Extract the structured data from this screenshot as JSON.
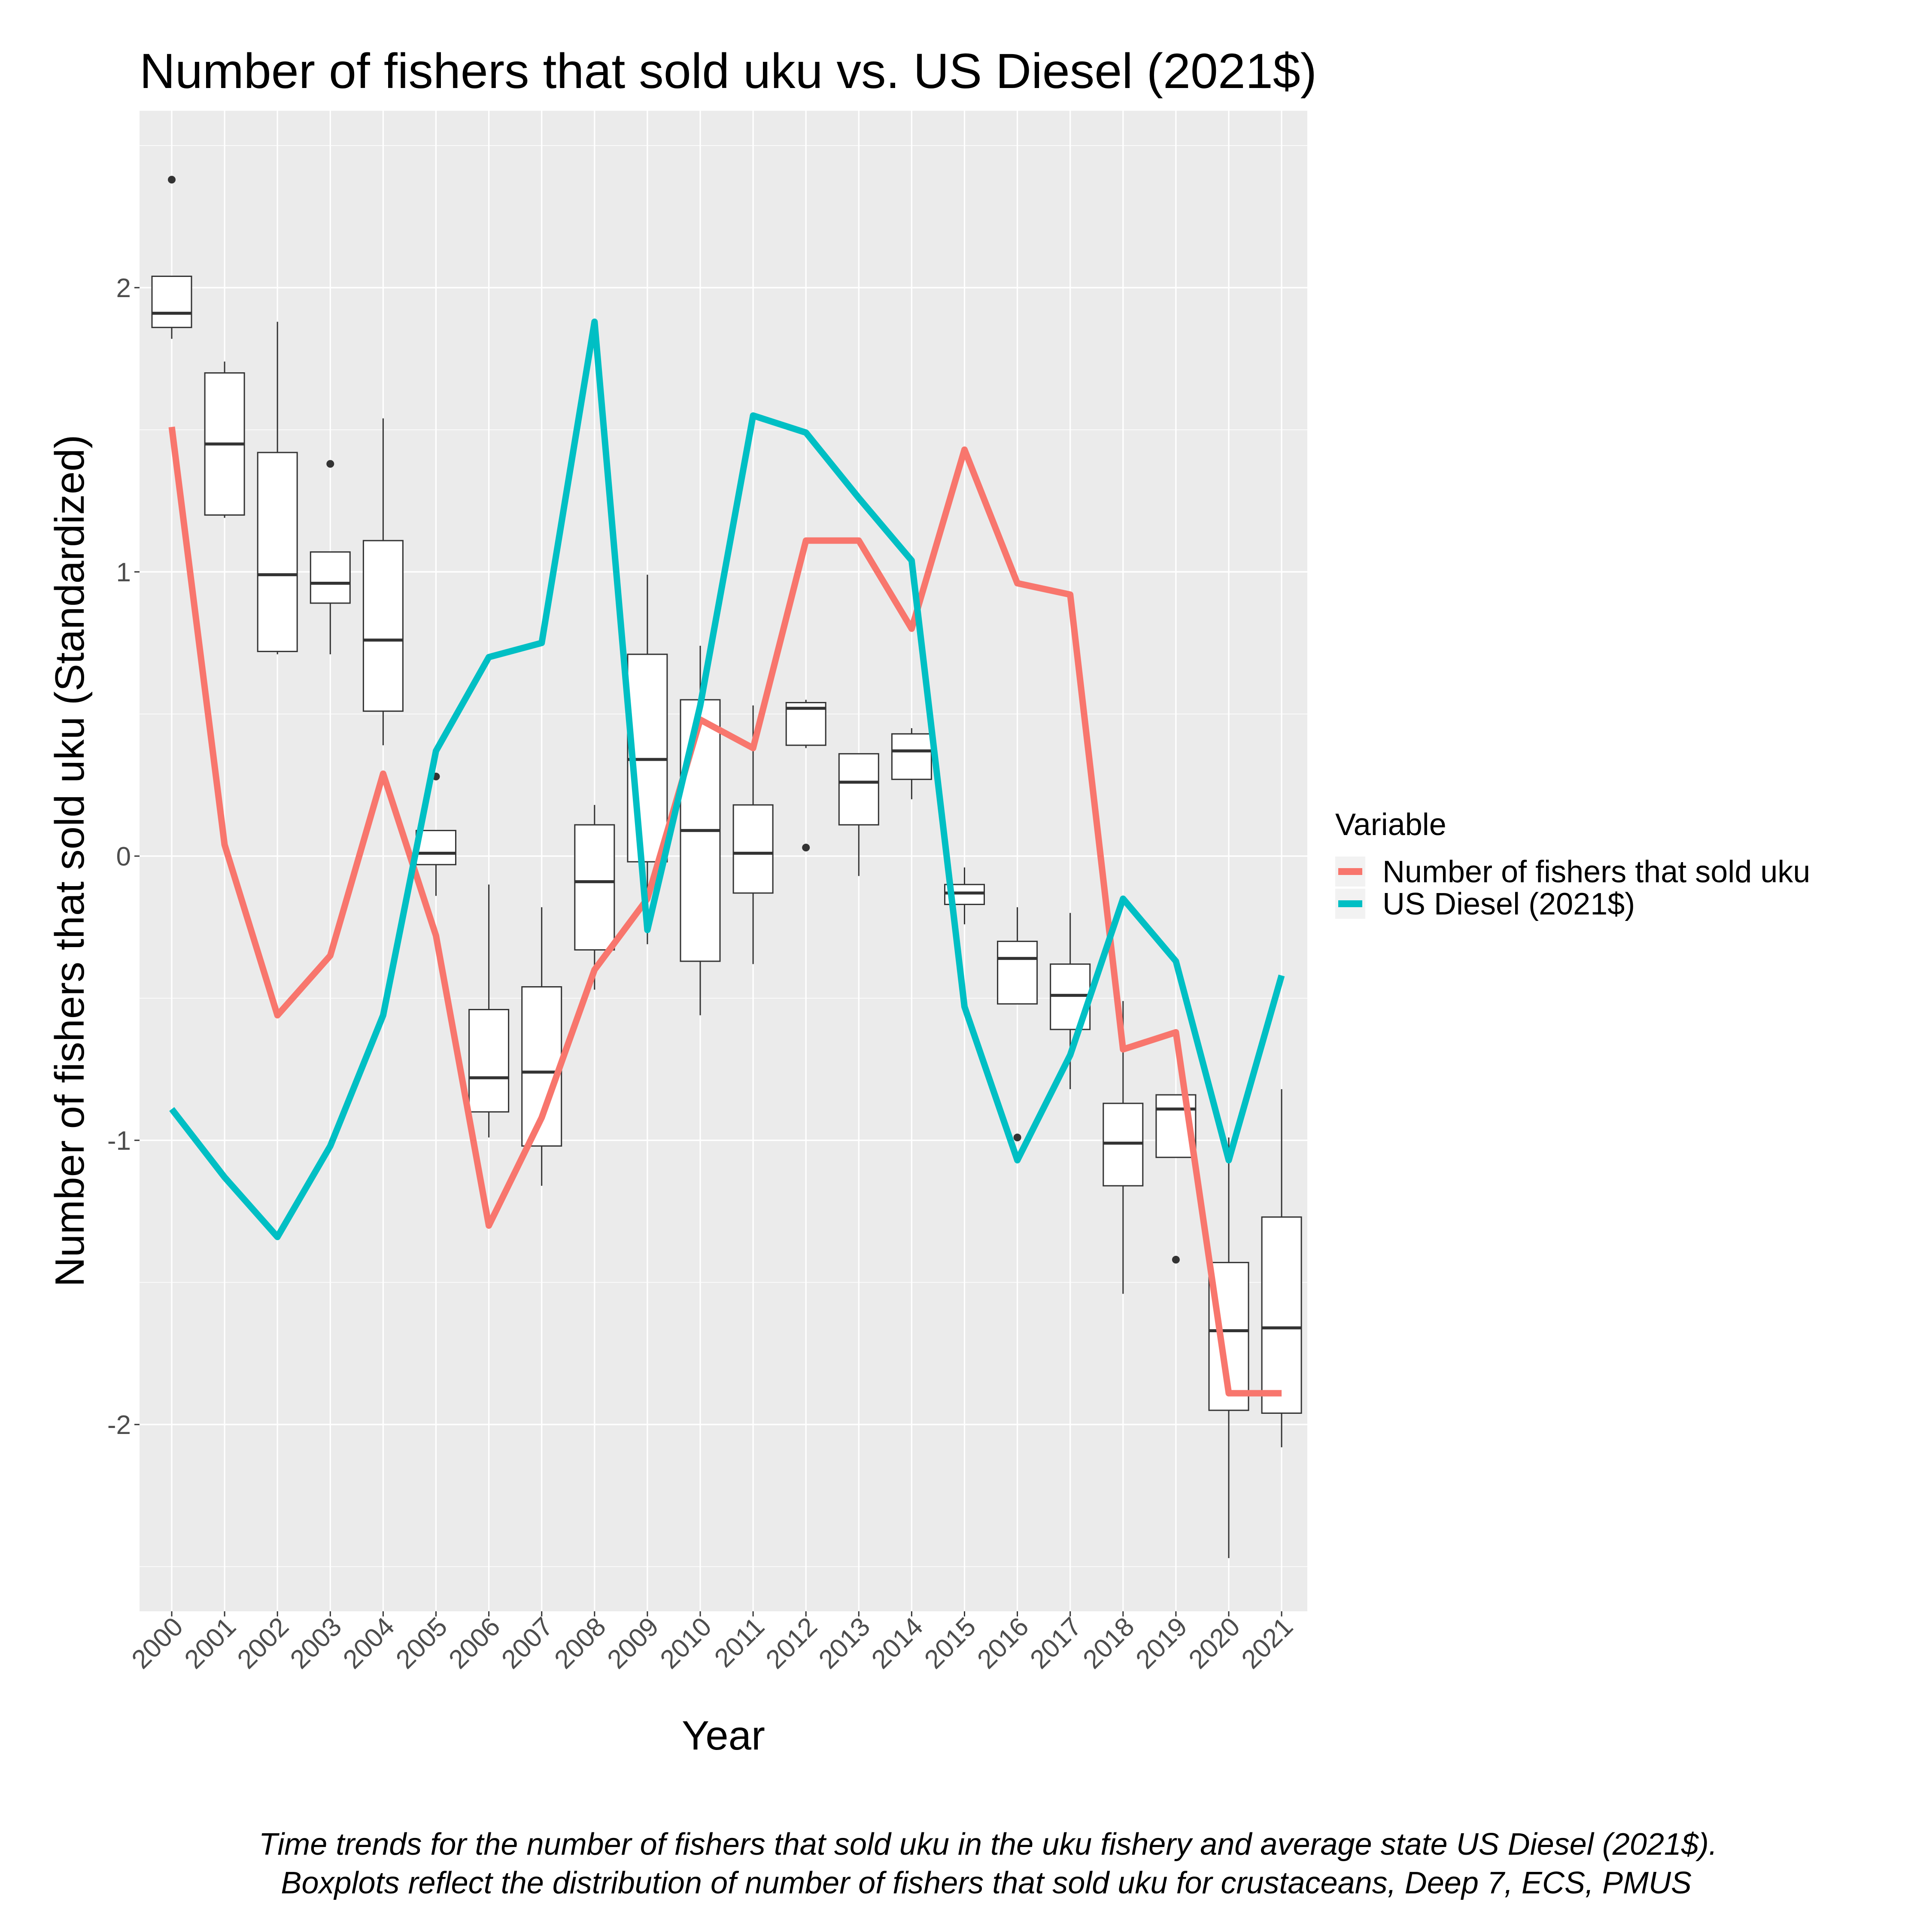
{
  "chart_data": {
    "type": "line",
    "title": "Number of fishers that sold uku vs. US Diesel (2021$)",
    "xlabel": "Year",
    "ylabel": "Number of fishers that sold uku (Standardized)",
    "categories": [
      "2000",
      "2001",
      "2002",
      "2003",
      "2004",
      "2005",
      "2006",
      "2007",
      "2008",
      "2009",
      "2010",
      "2011",
      "2012",
      "2013",
      "2014",
      "2015",
      "2016",
      "2017",
      "2018",
      "2019",
      "2020",
      "2021"
    ],
    "ylim": [
      -2.7,
      2.6
    ],
    "yticks": [
      2,
      1,
      0,
      -1,
      -2
    ],
    "ytick_labels": [
      "2",
      "1",
      "0",
      "-1",
      "-2"
    ],
    "grid": true,
    "legend": {
      "title": "Variable",
      "position": "right"
    },
    "series": [
      {
        "name": "Number of fishers that sold uku",
        "color": "#F8766D",
        "values": [
          1.51,
          0.04,
          -0.56,
          -0.35,
          0.29,
          -0.28,
          -1.3,
          -0.92,
          -0.4,
          -0.15,
          0.48,
          0.38,
          1.11,
          1.11,
          0.8,
          1.43,
          0.96,
          0.92,
          -0.68,
          -0.62,
          -1.89,
          -1.89
        ]
      },
      {
        "name": "US Diesel (2021$)",
        "color": "#00BFC4",
        "values": [
          -0.89,
          -1.13,
          -1.34,
          -1.02,
          -0.56,
          0.37,
          0.7,
          0.75,
          1.88,
          -0.26,
          0.53,
          1.55,
          1.49,
          1.26,
          1.04,
          -0.53,
          -1.07,
          -0.7,
          -0.15,
          -0.37,
          -1.07,
          -0.42
        ]
      }
    ],
    "boxplots": [
      {
        "x": "2000",
        "min": 1.82,
        "q1": 1.86,
        "median": 1.91,
        "q3": 2.04,
        "max": 2.04,
        "outliers": [
          2.38
        ]
      },
      {
        "x": "2001",
        "min": 1.19,
        "q1": 1.2,
        "median": 1.45,
        "q3": 1.7,
        "max": 1.74,
        "outliers": []
      },
      {
        "x": "2002",
        "min": 0.71,
        "q1": 0.72,
        "median": 0.99,
        "q3": 1.42,
        "max": 1.88,
        "outliers": []
      },
      {
        "x": "2003",
        "min": 0.71,
        "q1": 0.89,
        "median": 0.96,
        "q3": 1.07,
        "max": 1.07,
        "outliers": [
          1.38
        ]
      },
      {
        "x": "2004",
        "min": 0.39,
        "q1": 0.51,
        "median": 0.76,
        "q3": 1.11,
        "max": 1.54,
        "outliers": []
      },
      {
        "x": "2005",
        "min": -0.14,
        "q1": -0.03,
        "median": 0.01,
        "q3": 0.09,
        "max": 0.09,
        "outliers": [
          0.28
        ]
      },
      {
        "x": "2006",
        "min": -0.99,
        "q1": -0.9,
        "median": -0.78,
        "q3": -0.54,
        "max": -0.1,
        "outliers": []
      },
      {
        "x": "2007",
        "min": -1.16,
        "q1": -1.02,
        "median": -0.76,
        "q3": -0.46,
        "max": -0.18,
        "outliers": []
      },
      {
        "x": "2008",
        "min": -0.47,
        "q1": -0.33,
        "median": -0.09,
        "q3": 0.11,
        "max": 0.18,
        "outliers": []
      },
      {
        "x": "2009",
        "min": -0.31,
        "q1": -0.02,
        "median": 0.34,
        "q3": 0.71,
        "max": 0.99,
        "outliers": []
      },
      {
        "x": "2010",
        "min": -0.56,
        "q1": -0.37,
        "median": 0.09,
        "q3": 0.55,
        "max": 0.74,
        "outliers": []
      },
      {
        "x": "2011",
        "min": -0.38,
        "q1": -0.13,
        "median": 0.01,
        "q3": 0.18,
        "max": 0.53,
        "outliers": []
      },
      {
        "x": "2012",
        "min": 0.38,
        "q1": 0.39,
        "median": 0.52,
        "q3": 0.54,
        "max": 0.55,
        "outliers": [
          0.03
        ]
      },
      {
        "x": "2013",
        "min": -0.07,
        "q1": 0.11,
        "median": 0.26,
        "q3": 0.36,
        "max": 0.36,
        "outliers": []
      },
      {
        "x": "2014",
        "min": 0.2,
        "q1": 0.27,
        "median": 0.37,
        "q3": 0.43,
        "max": 0.45,
        "outliers": []
      },
      {
        "x": "2015",
        "min": -0.24,
        "q1": -0.17,
        "median": -0.13,
        "q3": -0.1,
        "max": -0.04,
        "outliers": []
      },
      {
        "x": "2016",
        "min": -0.52,
        "q1": -0.52,
        "median": -0.36,
        "q3": -0.3,
        "max": -0.18,
        "outliers": [
          -0.99
        ]
      },
      {
        "x": "2017",
        "min": -0.82,
        "q1": -0.61,
        "median": -0.49,
        "q3": -0.38,
        "max": -0.2,
        "outliers": []
      },
      {
        "x": "2018",
        "min": -1.54,
        "q1": -1.16,
        "median": -1.01,
        "q3": -0.87,
        "max": -0.51,
        "outliers": []
      },
      {
        "x": "2019",
        "min": -1.06,
        "q1": -1.06,
        "median": -0.89,
        "q3": -0.84,
        "max": -0.84,
        "outliers": [
          -1.42
        ]
      },
      {
        "x": "2020",
        "min": -2.47,
        "q1": -1.95,
        "median": -1.67,
        "q3": -1.43,
        "max": -0.99,
        "outliers": []
      },
      {
        "x": "2021",
        "min": -2.08,
        "q1": -1.96,
        "median": -1.66,
        "q3": -1.27,
        "max": -0.82,
        "outliers": []
      }
    ],
    "caption": [
      "Time trends for the number of fishers that sold uku in the uku fishery and average state US Diesel (2021$).",
      " Boxplots reflect the distribution of number of fishers that sold uku for crustaceans, Deep 7, ECS, PMUS"
    ]
  }
}
